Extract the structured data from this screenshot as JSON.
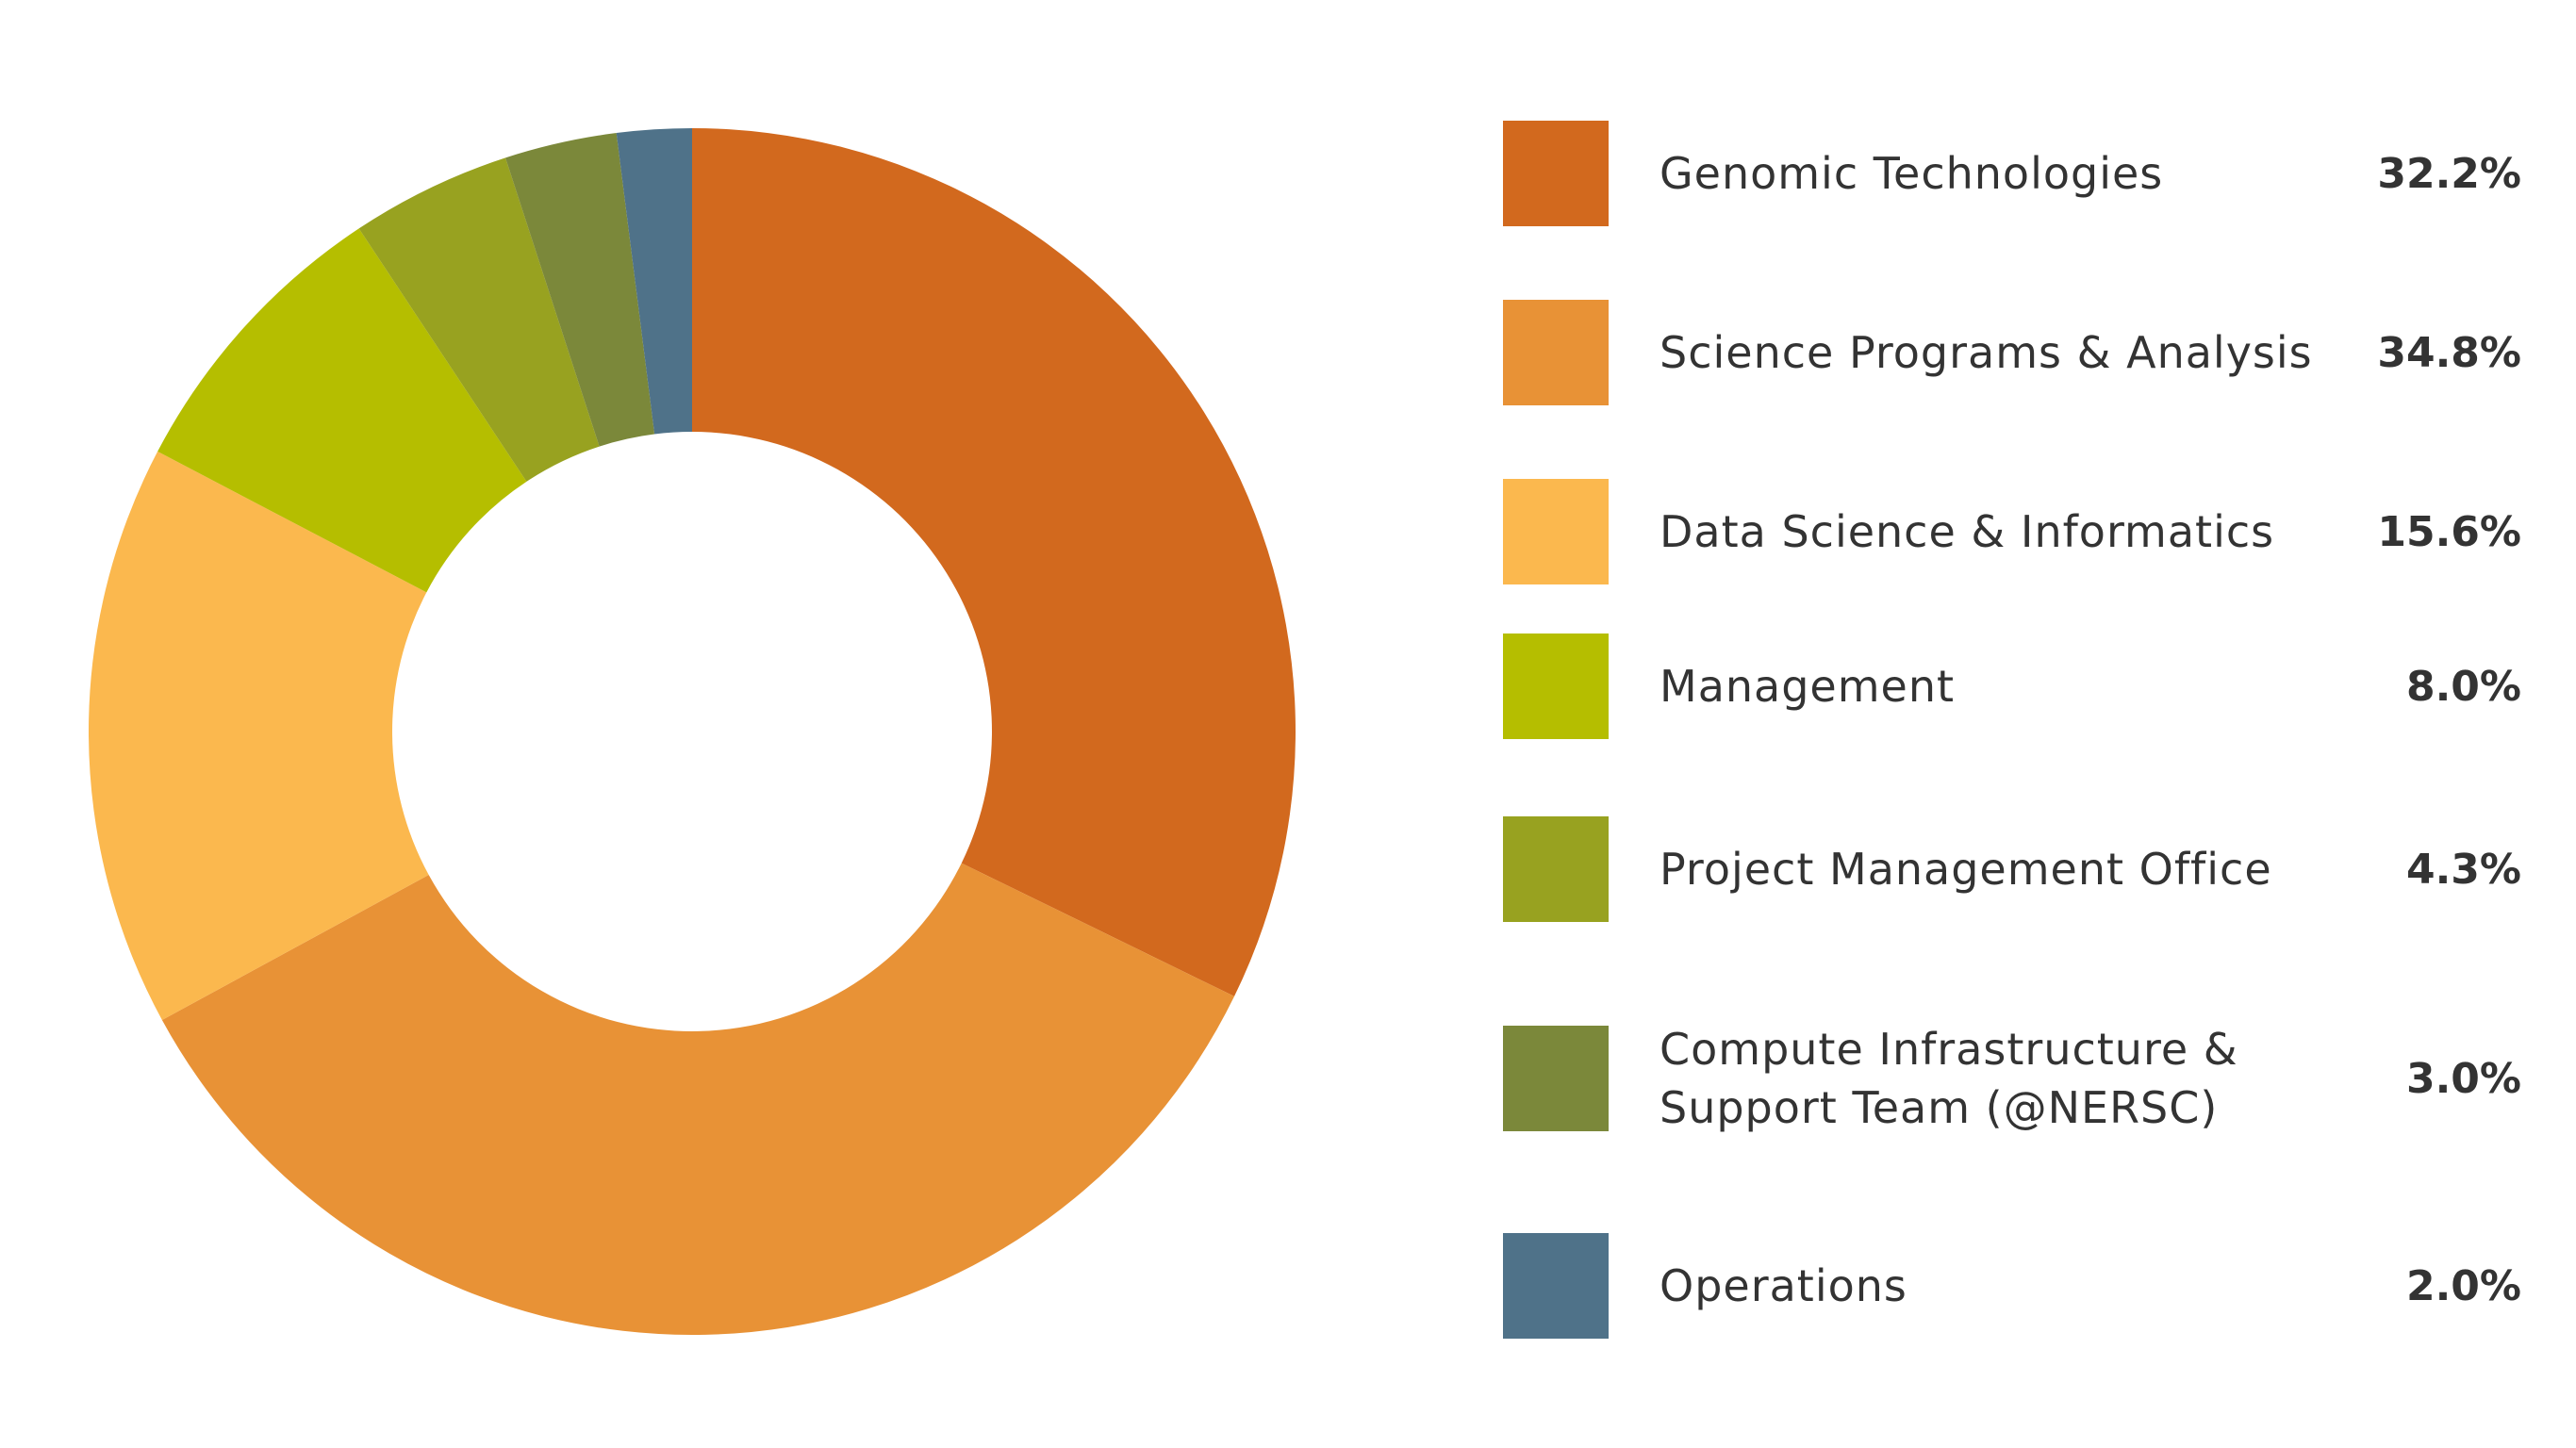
{
  "chart_data": {
    "type": "pie",
    "title": "",
    "donut": true,
    "legend_position": "right",
    "slices": [
      {
        "label": "Genomic Technologies",
        "value": 32.2,
        "display": "32.2%",
        "color": "#D2691E"
      },
      {
        "label": "Science Programs & Analysis",
        "value": 34.8,
        "display": "34.8%",
        "color": "#E89236"
      },
      {
        "label": "Data Science & Informatics",
        "value": 15.6,
        "display": "15.6%",
        "color": "#FBB84E"
      },
      {
        "label": "Management",
        "value": 8.0,
        "display": "8.0%",
        "color": "#B5BE00"
      },
      {
        "label": "Project Management Office",
        "value": 4.3,
        "display": "4.3%",
        "color": "#98A220"
      },
      {
        "label": "Compute Infrastructure &\nSupport Team (@NERSC)",
        "value": 3.0,
        "display": "3.0%",
        "color": "#7B883A"
      },
      {
        "label": "Operations",
        "value": 2.0,
        "display": "2.0%",
        "color": "#4F7289"
      }
    ]
  }
}
